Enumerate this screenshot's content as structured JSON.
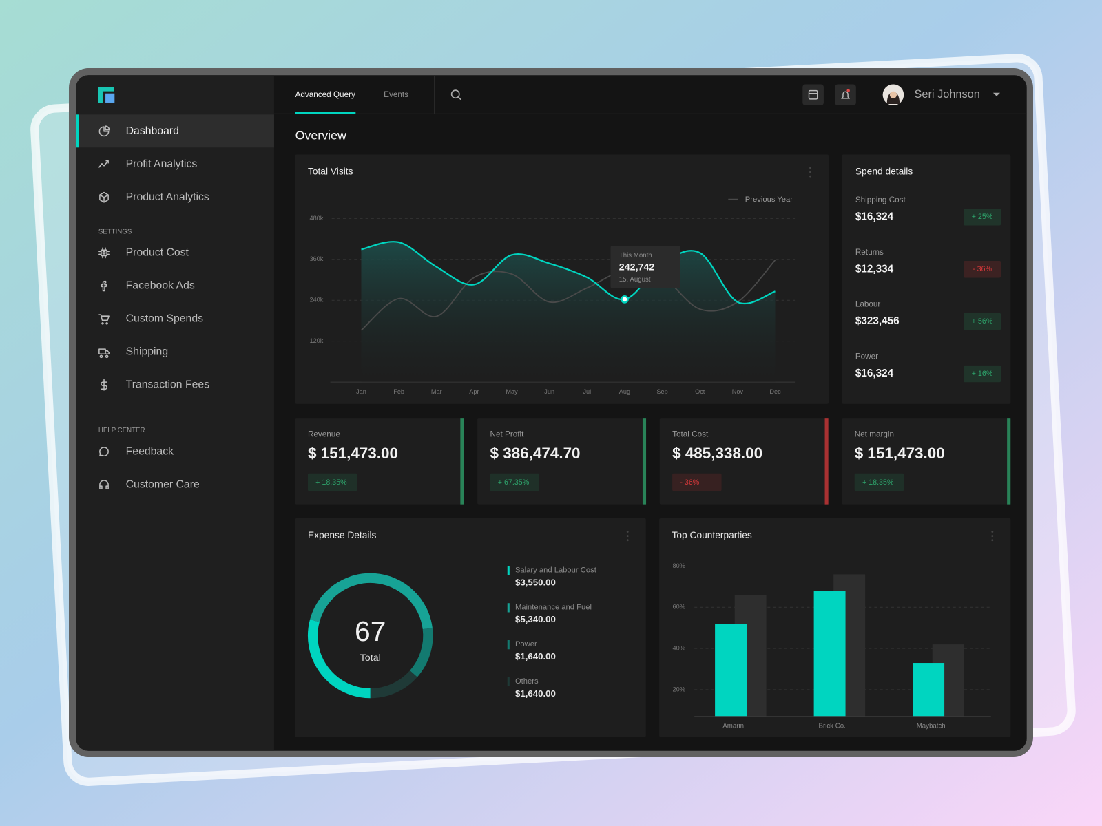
{
  "sidebar": {
    "menu": [
      "Dashboard",
      "Profit Analytics",
      "Product Analytics"
    ],
    "settings_title": "SETTINGS",
    "settings": [
      "Product Cost",
      "Facebook Ads",
      "Custom Spends",
      "Shipping",
      "Transaction Fees"
    ],
    "help_title": "HELP CENTER",
    "help": [
      "Feedback",
      "Customer Care"
    ]
  },
  "topbar": {
    "tabs": [
      "Advanced Query",
      "Events"
    ],
    "user": "Seri Johnson"
  },
  "page_title": "Overview",
  "spend_details": {
    "title": "Spend details",
    "items": [
      {
        "label": "Shipping Cost",
        "amount": "$16,324",
        "change": "+ 25%",
        "color": "#2ea56c"
      },
      {
        "label": "Returns",
        "amount": "$12,334",
        "change": "- 36%",
        "color": "#d8383a"
      },
      {
        "label": "Labour",
        "amount": "$323,456",
        "change": "+ 56%",
        "color": "#2ea56c"
      },
      {
        "label": "Power",
        "amount": "$16,324",
        "change": "+ 16%",
        "color": "#2ea56c"
      }
    ]
  },
  "kpis": [
    {
      "label": "Revenue",
      "amount": "$ 151,473.00",
      "change": "+ 18.35%",
      "color": "#2ea56c"
    },
    {
      "label": "Net Profit",
      "amount": "$ 386,474.70",
      "change": "+ 67.35%",
      "color": "#2ea56c"
    },
    {
      "label": "Total Cost",
      "amount": "$ 485,338.00",
      "change": "- 36%",
      "color": "#d8383a"
    },
    {
      "label": "Net margin",
      "amount": "$ 151,473.00",
      "change": "+ 18.35%",
      "color": "#2ea56c"
    }
  ],
  "chart_data": [
    {
      "type": "line",
      "title": "Total Visits",
      "categories": [
        "Jan",
        "Feb",
        "Mar",
        "Apr",
        "May",
        "Jun",
        "Jul",
        "Aug",
        "Sep",
        "Oct",
        "Nov",
        "Dec"
      ],
      "series": [
        {
          "color": "#00d5c0",
          "values": [
            389000,
            410000,
            338000,
            286000,
            373000,
            348000,
            307000,
            242742,
            348000,
            379000,
            235000,
            266000
          ]
        },
        {
          "name": "Previous Year",
          "color": "#4a4a4a",
          "values": [
            152000,
            245000,
            193000,
            307000,
            317000,
            235000,
            276000,
            327000,
            307000,
            214000,
            235000,
            358000
          ]
        }
      ],
      "ylim": [
        0,
        480000
      ],
      "yticks": [
        {
          "value": 120000,
          "label": "120k"
        },
        {
          "value": 240000,
          "label": "240k"
        },
        {
          "value": 360000,
          "label": "360k"
        },
        {
          "value": 480000,
          "label": "480k"
        }
      ],
      "grid": true,
      "tooltip": {
        "x": "Aug",
        "title": "This Month",
        "label": "242,742",
        "date": "15. August"
      }
    },
    {
      "type": "donut",
      "title": "Expense Details",
      "center_value": 67,
      "center_label": "Total",
      "categories": [
        "Salary and Labour Cost",
        "Maintenance and Fuel",
        "Power",
        "Others"
      ],
      "values": [
        3550,
        5340,
        1640,
        1640
      ],
      "value_labels": [
        "$3,550.00",
        "$5,340.00",
        "$1,640.00",
        "$1,640.00"
      ],
      "colors": [
        "#00d5c0",
        "#17a396",
        "#137a70",
        "#1f3a37"
      ]
    },
    {
      "type": "bar",
      "title": "Top Counterparties",
      "categories": [
        "Amarin",
        "Brick Co.",
        "Maybatch"
      ],
      "series": [
        {
          "color": "#00d5c0",
          "values": [
            52,
            68,
            33
          ]
        },
        {
          "color": "#2e2e2e",
          "values": [
            66,
            76,
            42
          ]
        }
      ],
      "ylim": [
        7,
        80
      ],
      "yticks": [
        {
          "value": 20,
          "label": "20%"
        },
        {
          "value": 40,
          "label": "40%"
        },
        {
          "value": 60,
          "label": "60%"
        },
        {
          "value": 80,
          "label": "80%"
        }
      ],
      "grid": true
    }
  ]
}
